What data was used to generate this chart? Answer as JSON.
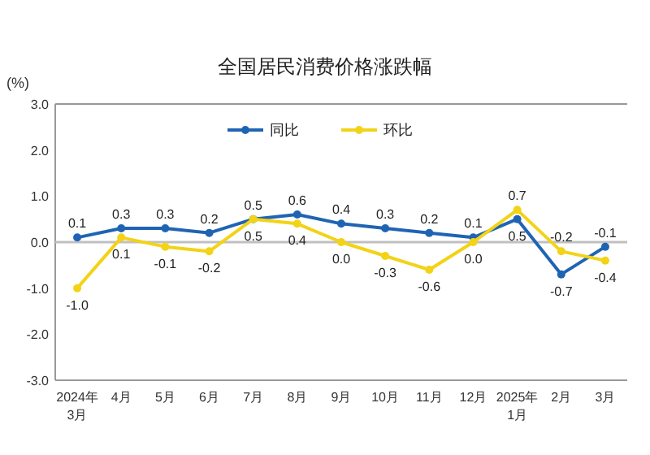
{
  "chart_data": {
    "type": "line",
    "title": "全国居民消费价格涨跌幅",
    "ylabel": "(%)",
    "categories": [
      "2024年\n3月",
      "4月",
      "5月",
      "6月",
      "7月",
      "8月",
      "9月",
      "10月",
      "11月",
      "12月",
      "2025年\n1月",
      "2月",
      "3月"
    ],
    "series": [
      {
        "name": "同比",
        "color": "#1f64b4",
        "values": [
          0.1,
          0.3,
          0.3,
          0.2,
          0.5,
          0.6,
          0.4,
          0.3,
          0.2,
          0.1,
          0.5,
          -0.7,
          -0.1
        ],
        "value_labels": [
          "0.1",
          "0.3",
          "0.3",
          "0.2",
          "0.5",
          "0.6",
          "0.4",
          "0.3",
          "0.2",
          "0.1",
          "0.5",
          "-0.7",
          "-0.1"
        ]
      },
      {
        "name": "环比",
        "color": "#f2d316",
        "values": [
          -1.0,
          0.1,
          -0.1,
          -0.2,
          0.5,
          0.4,
          0.0,
          -0.3,
          -0.6,
          0.0,
          0.7,
          -0.2,
          -0.4
        ],
        "value_labels": [
          "-1.0",
          "0.1",
          "-0.1",
          "-0.2",
          "0.5",
          "0.4",
          "0.0",
          "-0.3",
          "-0.6",
          "0.0",
          "0.7",
          "-0.2",
          "-0.4"
        ]
      }
    ],
    "ylim": [
      -3,
      3
    ],
    "yticks": [
      {
        "value": -3,
        "label": "-3.0"
      },
      {
        "value": -2,
        "label": "-2.0"
      },
      {
        "value": -1,
        "label": "-1.0"
      },
      {
        "value": 0,
        "label": "0.0"
      },
      {
        "value": 1,
        "label": "1.0"
      },
      {
        "value": 2,
        "label": "2.0"
      },
      {
        "value": 3,
        "label": "3.0"
      }
    ],
    "ref_lines": [
      {
        "axis": "y",
        "value": 0,
        "color": "#c0c0c0"
      }
    ],
    "legend": "top",
    "marker": "circle",
    "line_style": "solid",
    "grid": false
  }
}
